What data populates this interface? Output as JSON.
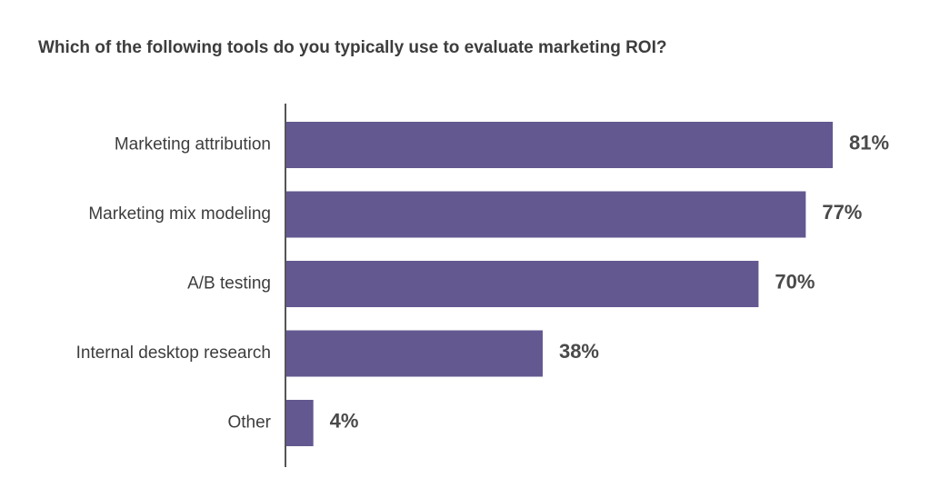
{
  "chart_data": {
    "type": "bar",
    "orientation": "horizontal",
    "title": "Which of the following tools do you typically use to evaluate marketing ROI?",
    "categories": [
      "Marketing attribution",
      "Marketing mix modeling",
      "A/B testing",
      "Internal desktop research",
      "Other"
    ],
    "values": [
      81,
      77,
      70,
      38,
      4
    ],
    "value_labels": [
      "81%",
      "77%",
      "70%",
      "38%",
      "4%"
    ],
    "unit": "%",
    "xlim": [
      0,
      100
    ],
    "grid": false,
    "legend": "none",
    "colors": {
      "bar": "#645891",
      "axis": "#555555",
      "text": "#3d3d3d",
      "value_text": "#4a4a4a"
    }
  }
}
